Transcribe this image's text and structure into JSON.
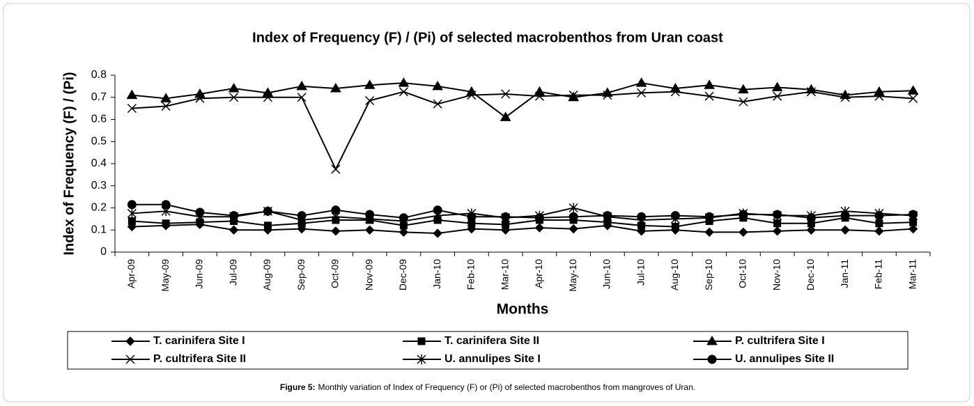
{
  "chart_data": {
    "type": "line",
    "title": "Index of Frequency (F) / (Pi) of selected macrobenthos from Uran coast",
    "xlabel": "Months",
    "ylabel": "Index of Frequency (F) / (Pi)",
    "categories": [
      "Apr-09",
      "May-09",
      "Jun-09",
      "Jul-09",
      "Aug-09",
      "Sep-09",
      "Oct-09",
      "Nov-09",
      "Dec-09",
      "Jan-10",
      "Feb-10",
      "Mar-10",
      "Apr-10",
      "May-10",
      "Jun-10",
      "Jul-10",
      "Aug-10",
      "Sep-10",
      "Oct-10",
      "Nov-10",
      "Dec-10",
      "Jan-11",
      "Feb-11",
      "Mar-11"
    ],
    "ylim": [
      0,
      0.8
    ],
    "yticks": [
      0,
      0.1,
      0.2,
      0.3,
      0.4,
      0.5,
      0.6,
      0.7,
      0.8
    ],
    "series": [
      {
        "name": "T. carinifera Site I",
        "color": "#000000",
        "marker": "diamond",
        "values": [
          0.115,
          0.12,
          0.125,
          0.1,
          0.1,
          0.105,
          0.095,
          0.1,
          0.09,
          0.085,
          0.105,
          0.1,
          0.11,
          0.105,
          0.12,
          0.095,
          0.1,
          0.09,
          0.09,
          0.095,
          0.1,
          0.1,
          0.095,
          0.105
        ]
      },
      {
        "name": "T. carinifera Site II",
        "color": "#000000",
        "marker": "square",
        "values": [
          0.14,
          0.13,
          0.135,
          0.14,
          0.12,
          0.13,
          0.145,
          0.145,
          0.12,
          0.145,
          0.13,
          0.125,
          0.145,
          0.145,
          0.135,
          0.12,
          0.115,
          0.14,
          0.155,
          0.13,
          0.13,
          0.155,
          0.13,
          0.135
        ]
      },
      {
        "name": "P. cultrifera Site I",
        "color": "#000000",
        "marker": "triangle",
        "values": [
          0.71,
          0.695,
          0.715,
          0.74,
          0.72,
          0.75,
          0.74,
          0.755,
          0.765,
          0.75,
          0.725,
          0.61,
          0.725,
          0.7,
          0.72,
          0.765,
          0.74,
          0.755,
          0.735,
          0.745,
          0.735,
          0.71,
          0.725,
          0.73
        ]
      },
      {
        "name": "P. cultrifera Site II",
        "color": "#000000",
        "marker": "x",
        "values": [
          0.65,
          0.66,
          0.695,
          0.7,
          0.7,
          0.7,
          0.375,
          0.685,
          0.725,
          0.67,
          0.71,
          0.715,
          0.705,
          0.71,
          0.71,
          0.72,
          0.725,
          0.705,
          0.68,
          0.705,
          0.725,
          0.7,
          0.705,
          0.695
        ]
      },
      {
        "name": "U. annulipes Site I",
        "color": "#000000",
        "marker": "star",
        "values": [
          0.175,
          0.185,
          0.16,
          0.16,
          0.185,
          0.145,
          0.16,
          0.15,
          0.14,
          0.165,
          0.175,
          0.155,
          0.165,
          0.2,
          0.16,
          0.145,
          0.15,
          0.155,
          0.175,
          0.165,
          0.165,
          0.185,
          0.175,
          0.165
        ]
      },
      {
        "name": "U. annulipes Site II",
        "color": "#000000",
        "marker": "circle",
        "values": [
          0.215,
          0.215,
          0.18,
          0.165,
          0.185,
          0.165,
          0.19,
          0.17,
          0.155,
          0.19,
          0.16,
          0.16,
          0.155,
          0.16,
          0.165,
          0.16,
          0.165,
          0.16,
          0.17,
          0.17,
          0.155,
          0.165,
          0.165,
          0.17
        ]
      }
    ],
    "caption": {
      "label": "Figure 5:",
      "text": "Monthly variation of Index of Frequency (F) or (Pi) of selected macrobenthos from mangroves of Uran."
    }
  }
}
